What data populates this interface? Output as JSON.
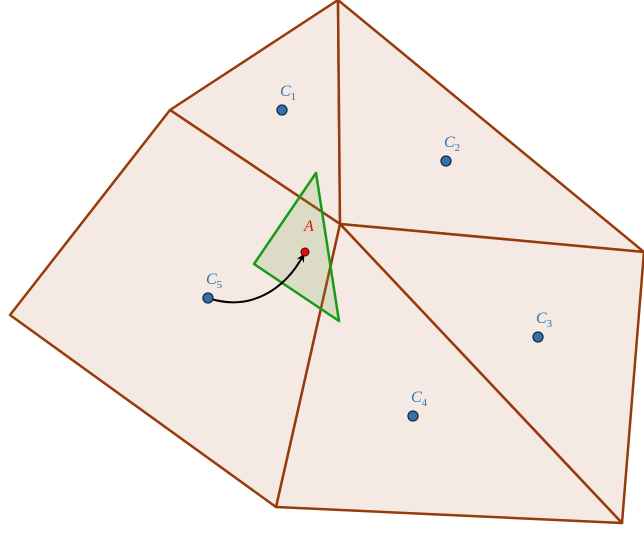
{
  "nodes": [
    {
      "label": "C",
      "sub": "1"
    },
    {
      "label": "C",
      "sub": "2"
    },
    {
      "label": "C",
      "sub": "3"
    },
    {
      "label": "C",
      "sub": "4"
    },
    {
      "label": "C",
      "sub": "5"
    }
  ],
  "target": {
    "label": "A"
  }
}
